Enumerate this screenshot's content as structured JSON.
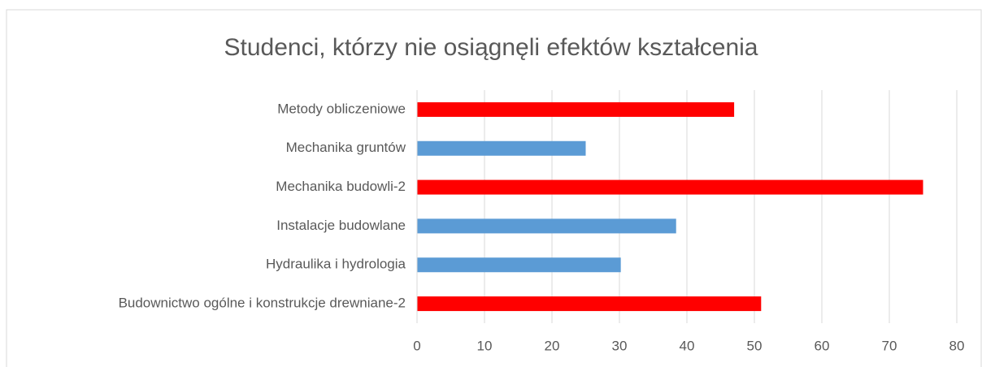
{
  "chart_data": {
    "type": "bar",
    "orientation": "horizontal",
    "title": "Studenci, którzy nie osiągnęli efektów kształcenia",
    "categories": [
      "Metody obliczeniowe",
      "Mechanika gruntów",
      "Mechanika budowli-2",
      "Instalacje budowlane",
      "Hydraulika i hydrologia",
      "Budownictwo ogólne i konstrukcje drewniane-2"
    ],
    "values": [
      47,
      25,
      75,
      38.4,
      30.2,
      51
    ],
    "colors": [
      "#ff0000",
      "#5b9bd5",
      "#ff0000",
      "#5b9bd5",
      "#5b9bd5",
      "#ff0000"
    ],
    "xlim": [
      0,
      80
    ],
    "xticks": [
      0,
      10,
      20,
      30,
      40,
      50,
      60,
      70,
      80
    ],
    "grid": true
  }
}
